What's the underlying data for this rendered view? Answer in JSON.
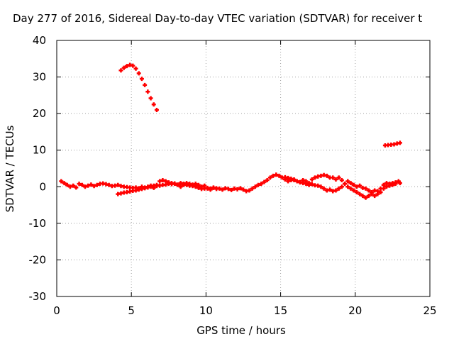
{
  "colors": {
    "series": "#ff0000",
    "grid": "#a0a0a0",
    "axis": "#000000",
    "background": "#ffffff"
  },
  "chart_data": {
    "type": "scatter",
    "title": "Day 277 of 2016, Sidereal Day-to-day VTEC variation (SDTVAR) for receiver t",
    "xlabel": "GPS time / hours",
    "ylabel": "SDTVAR / TECUs",
    "xlim": [
      0,
      25
    ],
    "ylim": [
      -30,
      40
    ],
    "xticks": [
      "0",
      "5",
      "10",
      "15",
      "20",
      "25"
    ],
    "yticks": [
      "-30",
      "-20",
      "-10",
      "0",
      "10",
      "20",
      "30",
      "40"
    ],
    "grid": true,
    "marker": "plus",
    "series": [
      {
        "points": [
          [
            4.3,
            31.8
          ],
          [
            4.5,
            32.5
          ],
          [
            4.7,
            33.0
          ],
          [
            4.9,
            33.3
          ],
          [
            5.1,
            33.1
          ],
          [
            5.3,
            32.3
          ],
          [
            5.5,
            31.0
          ],
          [
            5.7,
            29.5
          ],
          [
            5.9,
            27.8
          ],
          [
            6.1,
            26.0
          ],
          [
            6.3,
            24.2
          ],
          [
            6.5,
            22.5
          ],
          [
            6.7,
            21.0
          ]
        ]
      },
      {
        "points": [
          [
            22.0,
            11.3
          ],
          [
            22.2,
            11.4
          ],
          [
            22.4,
            11.5
          ],
          [
            22.6,
            11.6
          ],
          [
            22.8,
            11.8
          ],
          [
            23.0,
            12.0
          ]
        ]
      },
      {
        "points": [
          [
            0.3,
            1.5
          ],
          [
            0.5,
            1.0
          ],
          [
            0.7,
            0.5
          ],
          [
            0.9,
            0.0
          ],
          [
            1.1,
            0.3
          ],
          [
            1.3,
            -0.2
          ],
          [
            1.5,
            0.8
          ],
          [
            1.7,
            0.5
          ],
          [
            1.9,
            0.0
          ],
          [
            2.1,
            0.3
          ],
          [
            2.3,
            0.6
          ],
          [
            2.5,
            0.2
          ],
          [
            2.7,
            0.5
          ],
          [
            2.9,
            0.8
          ],
          [
            3.1,
            0.9
          ],
          [
            3.3,
            0.7
          ],
          [
            3.5,
            0.5
          ],
          [
            3.7,
            0.2
          ],
          [
            3.9,
            0.3
          ],
          [
            4.1,
            0.5
          ],
          [
            4.3,
            0.2
          ],
          [
            4.5,
            0.0
          ],
          [
            4.7,
            -0.1
          ],
          [
            4.9,
            -0.2
          ],
          [
            5.1,
            -0.3
          ],
          [
            5.3,
            -0.2
          ],
          [
            5.5,
            -0.4
          ],
          [
            5.7,
            0.0
          ],
          [
            5.9,
            -0.2
          ],
          [
            6.1,
            0.0
          ],
          [
            6.3,
            0.3
          ],
          [
            6.5,
            -0.3
          ],
          [
            6.7,
            0.2
          ],
          [
            6.9,
            1.5
          ],
          [
            7.1,
            1.8
          ],
          [
            7.3,
            1.5
          ],
          [
            7.5,
            1.2
          ],
          [
            7.7,
            1.0
          ],
          [
            7.9,
            0.8
          ],
          [
            8.1,
            0.5
          ],
          [
            8.3,
            0.0
          ],
          [
            8.5,
            0.5
          ],
          [
            8.7,
            1.0
          ],
          [
            8.9,
            0.3
          ],
          [
            9.1,
            0.6
          ],
          [
            9.3,
            0.8
          ],
          [
            9.5,
            0.5
          ],
          [
            9.7,
            0.0
          ],
          [
            9.9,
            0.3
          ],
          [
            10.1,
            -0.5
          ],
          [
            10.3,
            -0.8
          ],
          [
            10.5,
            -0.3
          ],
          [
            10.7,
            -0.6
          ],
          [
            10.9,
            -0.5
          ],
          [
            11.1,
            -0.8
          ],
          [
            11.3,
            -0.4
          ],
          [
            11.5,
            -0.6
          ],
          [
            11.7,
            -0.9
          ],
          [
            11.9,
            -0.5
          ],
          [
            12.1,
            -0.7
          ],
          [
            12.3,
            -0.4
          ],
          [
            12.5,
            -0.8
          ],
          [
            12.7,
            -1.2
          ],
          [
            12.9,
            -1.0
          ],
          [
            13.1,
            -0.5
          ],
          [
            13.3,
            0.0
          ],
          [
            13.5,
            0.5
          ],
          [
            13.7,
            0.8
          ],
          [
            13.9,
            1.3
          ],
          [
            14.1,
            1.8
          ],
          [
            14.3,
            2.5
          ],
          [
            14.5,
            3.0
          ],
          [
            14.7,
            3.3
          ],
          [
            14.9,
            3.0
          ],
          [
            15.1,
            2.5
          ],
          [
            15.3,
            2.0
          ],
          [
            15.5,
            1.5
          ],
          [
            15.7,
            1.8
          ],
          [
            15.9,
            2.0
          ],
          [
            16.1,
            1.5
          ],
          [
            16.3,
            1.2
          ],
          [
            16.5,
            1.8
          ],
          [
            16.7,
            1.5
          ],
          [
            16.9,
            1.0
          ],
          [
            17.1,
            2.0
          ],
          [
            17.3,
            2.5
          ],
          [
            17.5,
            2.8
          ],
          [
            17.7,
            3.0
          ],
          [
            17.9,
            3.2
          ],
          [
            18.1,
            3.0
          ],
          [
            18.3,
            2.5
          ],
          [
            18.5,
            2.5
          ],
          [
            18.7,
            2.0
          ],
          [
            18.9,
            2.5
          ],
          [
            19.1,
            1.8
          ],
          [
            19.3,
            0.8
          ],
          [
            19.5,
            0.0
          ],
          [
            19.7,
            -0.5
          ],
          [
            19.9,
            -1.0
          ],
          [
            20.1,
            -1.5
          ],
          [
            20.3,
            -2.0
          ],
          [
            20.5,
            -2.5
          ],
          [
            20.7,
            -3.0
          ],
          [
            20.9,
            -2.5
          ],
          [
            21.1,
            -2.0
          ],
          [
            21.3,
            -1.0
          ],
          [
            21.5,
            -1.2
          ],
          [
            21.7,
            -0.5
          ],
          [
            21.9,
            0.5
          ],
          [
            22.1,
            1.0
          ],
          [
            22.3,
            0.8
          ],
          [
            22.5,
            1.0
          ],
          [
            22.7,
            1.2
          ],
          [
            22.9,
            1.5
          ],
          [
            23.0,
            1.0
          ]
        ]
      },
      {
        "points": [
          [
            4.1,
            -2.0
          ],
          [
            4.3,
            -1.8
          ],
          [
            4.5,
            -1.6
          ],
          [
            4.7,
            -1.5
          ],
          [
            4.9,
            -1.3
          ],
          [
            5.1,
            -1.1
          ],
          [
            5.3,
            -1.0
          ],
          [
            5.5,
            -0.8
          ],
          [
            5.7,
            -0.6
          ],
          [
            5.9,
            -0.4
          ],
          [
            6.1,
            -0.2
          ],
          [
            6.3,
            0.0
          ],
          [
            6.5,
            0.3
          ],
          [
            6.7,
            0.5
          ],
          [
            6.9,
            0.3
          ],
          [
            7.1,
            0.5
          ],
          [
            7.3,
            0.6
          ],
          [
            7.5,
            0.8
          ],
          [
            7.7,
            0.7
          ],
          [
            7.9,
            0.9
          ],
          [
            8.1,
            0.6
          ],
          [
            8.3,
            1.0
          ],
          [
            8.5,
            0.8
          ],
          [
            8.7,
            0.5
          ],
          [
            8.9,
            0.8
          ],
          [
            9.1,
            0.2
          ],
          [
            9.3,
            0.0
          ],
          [
            9.5,
            -0.3
          ],
          [
            9.7,
            -0.6
          ],
          [
            9.9,
            -0.5
          ],
          [
            10.1,
            -0.3
          ],
          [
            10.3,
            -0.5
          ],
          [
            10.5,
            -0.2
          ],
          [
            10.7,
            -0.4
          ]
        ]
      },
      {
        "points": [
          [
            15.3,
            2.6
          ],
          [
            15.5,
            2.4
          ],
          [
            15.7,
            2.2
          ],
          [
            15.9,
            1.8
          ],
          [
            16.1,
            1.5
          ],
          [
            16.3,
            1.3
          ],
          [
            16.5,
            1.0
          ],
          [
            16.7,
            0.8
          ],
          [
            16.9,
            0.5
          ],
          [
            17.1,
            0.7
          ],
          [
            17.3,
            0.4
          ],
          [
            17.5,
            0.3
          ],
          [
            17.7,
            0.0
          ],
          [
            17.9,
            -0.5
          ],
          [
            18.1,
            -1.0
          ],
          [
            18.3,
            -0.8
          ],
          [
            18.5,
            -1.2
          ],
          [
            18.7,
            -1.0
          ],
          [
            18.9,
            -0.5
          ],
          [
            19.1,
            0.0
          ],
          [
            19.3,
            0.8
          ],
          [
            19.5,
            1.5
          ],
          [
            19.7,
            1.0
          ],
          [
            19.9,
            0.5
          ],
          [
            20.1,
            0.0
          ],
          [
            20.3,
            0.3
          ],
          [
            20.5,
            -0.3
          ],
          [
            20.7,
            -0.5
          ],
          [
            20.9,
            -1.0
          ],
          [
            21.1,
            -1.5
          ],
          [
            21.3,
            -2.5
          ],
          [
            21.5,
            -2.0
          ],
          [
            21.7,
            -1.5
          ],
          [
            21.9,
            -0.5
          ],
          [
            22.1,
            0.0
          ],
          [
            22.3,
            0.3
          ],
          [
            22.5,
            0.5
          ],
          [
            22.7,
            0.8
          ]
        ]
      }
    ]
  }
}
